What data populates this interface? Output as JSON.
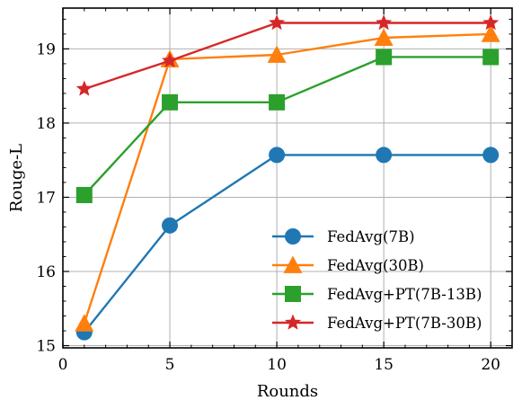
{
  "chart_data": {
    "type": "line",
    "xlabel": "Rounds",
    "ylabel": "Rouge-L",
    "xlim": [
      0,
      21
    ],
    "ylim": [
      14.97,
      19.55
    ],
    "xticks": [
      0,
      5,
      10,
      15,
      20
    ],
    "yticks": [
      15,
      16,
      17,
      18,
      19
    ],
    "grid": true,
    "legend_position": "lower-right",
    "x": [
      1,
      5,
      10,
      15,
      20
    ],
    "series": [
      {
        "name": "FedAvg(7B)",
        "color": "#1f77b4",
        "marker": "circle",
        "values": [
          15.18,
          16.62,
          17.57,
          17.57,
          17.57
        ]
      },
      {
        "name": "FedAvg(30B)",
        "color": "#ff7f0e",
        "marker": "triangle",
        "values": [
          15.3,
          18.86,
          18.92,
          19.15,
          19.2
        ]
      },
      {
        "name": "FedAvg+PT(7B-13B)",
        "color": "#2ca02c",
        "marker": "square",
        "values": [
          17.03,
          18.28,
          18.28,
          18.89,
          18.89
        ]
      },
      {
        "name": "FedAvg+PT(7B-30B)",
        "color": "#d62728",
        "marker": "star",
        "values": [
          18.46,
          18.84,
          19.35,
          19.35,
          19.35
        ]
      }
    ]
  }
}
